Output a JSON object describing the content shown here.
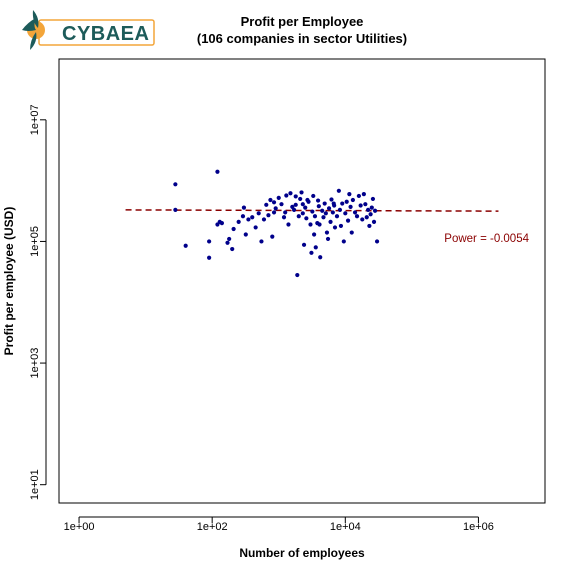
{
  "logo": {
    "text": "CYBAEA",
    "colors": {
      "dark": "#1d5b5a",
      "orange": "#f3a53a",
      "box_border": "#f3a53a"
    }
  },
  "chart_data": {
    "type": "scatter",
    "title": "Profit per Employee",
    "subtitle": "(106 companies in sector Utilities)",
    "xlabel": "Number of employees",
    "ylabel": "Profit per employee (USD)",
    "x_scale": "log10",
    "y_scale": "log10",
    "xlim": [
      0.5,
      10000000
    ],
    "ylim": [
      5,
      100000000
    ],
    "x_ticks": [
      {
        "value": 1,
        "label": "1e+00"
      },
      {
        "value": 100,
        "label": "1e+02"
      },
      {
        "value": 10000,
        "label": "1e+04"
      },
      {
        "value": 1000000,
        "label": "1e+06"
      }
    ],
    "y_ticks": [
      {
        "value": 10,
        "label": "1e+01"
      },
      {
        "value": 1000,
        "label": "1e+03"
      },
      {
        "value": 100000,
        "label": "1e+05"
      },
      {
        "value": 10000000,
        "label": "1e+07"
      }
    ],
    "point_color": "#00008b",
    "points": [
      [
        28,
        870000
      ],
      [
        28,
        330000
      ],
      [
        40,
        85000
      ],
      [
        90,
        100000
      ],
      [
        90,
        54000
      ],
      [
        120,
        1400000
      ],
      [
        120,
        190000
      ],
      [
        130,
        210000
      ],
      [
        140,
        200000
      ],
      [
        170,
        95000
      ],
      [
        180,
        110000
      ],
      [
        200,
        75000
      ],
      [
        210,
        160000
      ],
      [
        250,
        210000
      ],
      [
        290,
        260000
      ],
      [
        300,
        360000
      ],
      [
        320,
        130000
      ],
      [
        350,
        230000
      ],
      [
        400,
        250000
      ],
      [
        450,
        170000
      ],
      [
        500,
        290000
      ],
      [
        550,
        100000
      ],
      [
        600,
        230000
      ],
      [
        700,
        270000
      ],
      [
        750,
        480000
      ],
      [
        800,
        120000
      ],
      [
        850,
        440000
      ],
      [
        900,
        350000
      ],
      [
        1000,
        520000
      ],
      [
        1100,
        410000
      ],
      [
        1200,
        250000
      ],
      [
        1300,
        570000
      ],
      [
        1400,
        190000
      ],
      [
        1500,
        620000
      ],
      [
        1600,
        370000
      ],
      [
        1700,
        330000
      ],
      [
        1800,
        400000
      ],
      [
        1900,
        28000
      ],
      [
        2000,
        260000
      ],
      [
        2100,
        500000
      ],
      [
        2200,
        640000
      ],
      [
        2300,
        290000
      ],
      [
        2400,
        88000
      ],
      [
        2500,
        360000
      ],
      [
        2600,
        240000
      ],
      [
        2700,
        480000
      ],
      [
        2800,
        450000
      ],
      [
        3000,
        190000
      ],
      [
        3100,
        65000
      ],
      [
        3200,
        310000
      ],
      [
        3400,
        130000
      ],
      [
        3500,
        260000
      ],
      [
        3600,
        80000
      ],
      [
        3800,
        200000
      ],
      [
        3900,
        470000
      ],
      [
        4000,
        380000
      ],
      [
        4100,
        190000
      ],
      [
        4200,
        55000
      ],
      [
        4500,
        320000
      ],
      [
        4700,
        250000
      ],
      [
        4900,
        420000
      ],
      [
        5100,
        290000
      ],
      [
        5300,
        140000
      ],
      [
        5500,
        110000
      ],
      [
        5700,
        350000
      ],
      [
        6000,
        210000
      ],
      [
        6200,
        490000
      ],
      [
        6500,
        300000
      ],
      [
        6800,
        390000
      ],
      [
        7000,
        170000
      ],
      [
        7500,
        260000
      ],
      [
        8000,
        680000
      ],
      [
        8300,
        330000
      ],
      [
        8600,
        180000
      ],
      [
        9000,
        420000
      ],
      [
        9500,
        100000
      ],
      [
        10000,
        290000
      ],
      [
        10500,
        450000
      ],
      [
        11000,
        220000
      ],
      [
        12000,
        370000
      ],
      [
        12500,
        140000
      ],
      [
        13000,
        480000
      ],
      [
        14000,
        300000
      ],
      [
        15000,
        260000
      ],
      [
        16000,
        560000
      ],
      [
        17000,
        390000
      ],
      [
        18000,
        230000
      ],
      [
        19000,
        600000
      ],
      [
        20000,
        410000
      ],
      [
        21000,
        250000
      ],
      [
        22000,
        330000
      ],
      [
        23000,
        180000
      ],
      [
        24000,
        280000
      ],
      [
        25000,
        360000
      ],
      [
        26000,
        500000
      ],
      [
        27000,
        210000
      ],
      [
        28000,
        320000
      ],
      [
        30000,
        100000
      ],
      [
        2300,
        410000
      ],
      [
        1800,
        550000
      ],
      [
        1250,
        300000
      ],
      [
        850,
        300000
      ],
      [
        11500,
        600000
      ],
      [
        6700,
        420000
      ],
      [
        3300,
        560000
      ],
      [
        650,
        400000
      ]
    ],
    "fit_line": {
      "color": "#8b0000",
      "x": [
        5,
        2000000
      ],
      "y": [
        330000,
        315000
      ],
      "label": "Power =  -0.0054",
      "label_color": "#8b0000"
    }
  }
}
